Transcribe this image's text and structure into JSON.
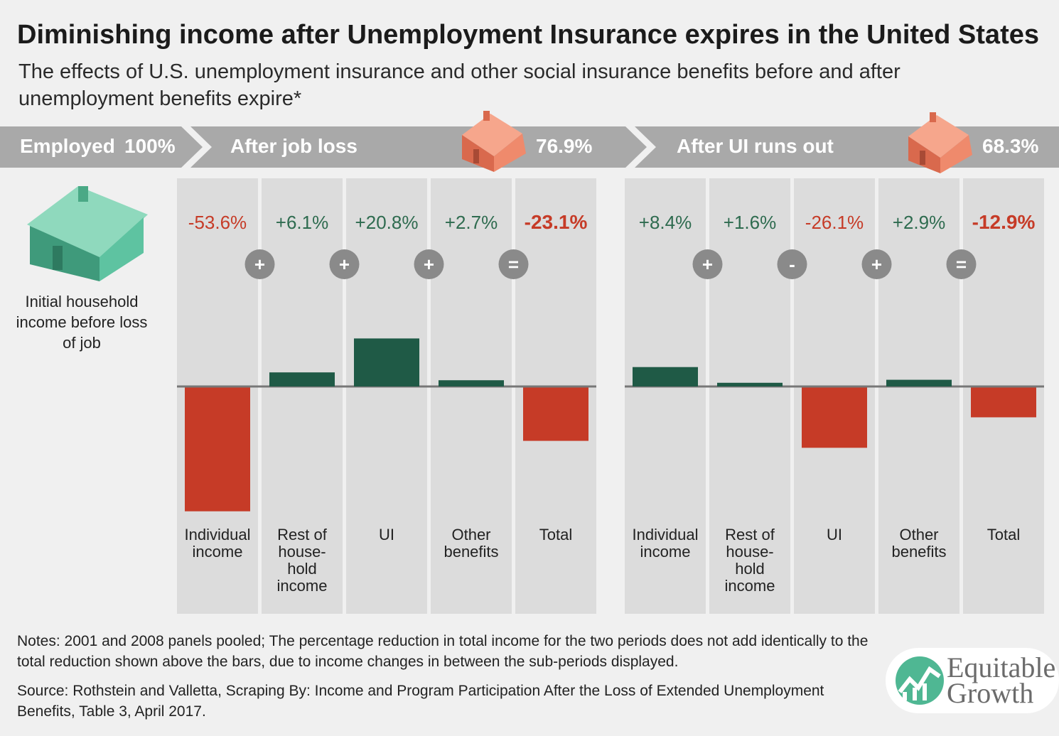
{
  "title": "Diminishing income after Unemployment Insurance expires in the United States",
  "subtitle": "The effects of U.S. unemployment insurance and other social insurance benefits before and after unemployment benefits expire*",
  "band": {
    "employed_label": "Employed",
    "employed_value": "100%",
    "after_job_loss_label": "After job loss",
    "after_job_loss_value": "76.9%",
    "after_ui_label": "After UI runs out",
    "after_ui_value": "68.3%"
  },
  "left_label": "Initial household income before loss of job",
  "notes": "Notes: 2001 and 2008 panels pooled; The percentage reduction in total income for the two periods does not add identically to the total reduction shown above the bars, due to income changes in between the sub-periods displayed.",
  "source": "Source: Rothstein and Valletta, Scraping By: Income and Program Participation After the Loss of Extended Unemployment Benefits, Table 3, April 2017.",
  "logo": {
    "line1": "Equitable",
    "line2": "Growth"
  },
  "colors": {
    "positive": "#1f5a46",
    "negative": "#c63b27",
    "positive_text": "#2e6b4f",
    "negative_text": "#c63b27",
    "band": "#a9a9a9",
    "panel": "#dcdcdc",
    "operator": "#8a8a8a",
    "house_green": "#5ec3a1",
    "house_orange": "#ef8a6c"
  },
  "chart_data": [
    {
      "type": "bar",
      "categories": [
        "Individual income",
        "Rest of household income",
        "UI",
        "Other benefits",
        "Total"
      ],
      "values": [
        -53.6,
        6.1,
        20.8,
        2.7,
        -23.1
      ],
      "value_labels": [
        "-53.6%",
        "+6.1%",
        "+20.8%",
        "+2.7%",
        "-23.1%"
      ],
      "operators": [
        "+",
        "+",
        "+",
        "="
      ],
      "category_lines": [
        [
          "Individual",
          "income"
        ],
        [
          "Rest of",
          "house-",
          "hold",
          "income"
        ],
        [
          "UI"
        ],
        [
          "Other",
          "benefits"
        ],
        [
          "Total"
        ]
      ]
    },
    {
      "type": "bar",
      "categories": [
        "Individual income",
        "Rest of household income",
        "UI",
        "Other benefits",
        "Total"
      ],
      "values": [
        8.4,
        1.6,
        -26.1,
        2.9,
        -12.9
      ],
      "value_labels": [
        "+8.4%",
        "+1.6%",
        "-26.1%",
        "+2.9%",
        "-12.9%"
      ],
      "operators": [
        "+",
        "-",
        "+",
        "="
      ],
      "category_lines": [
        [
          "Individual",
          "income"
        ],
        [
          "Rest of",
          "house-",
          "hold",
          "income"
        ],
        [
          "UI"
        ],
        [
          "Other",
          "benefits"
        ],
        [
          "Total"
        ]
      ]
    }
  ]
}
